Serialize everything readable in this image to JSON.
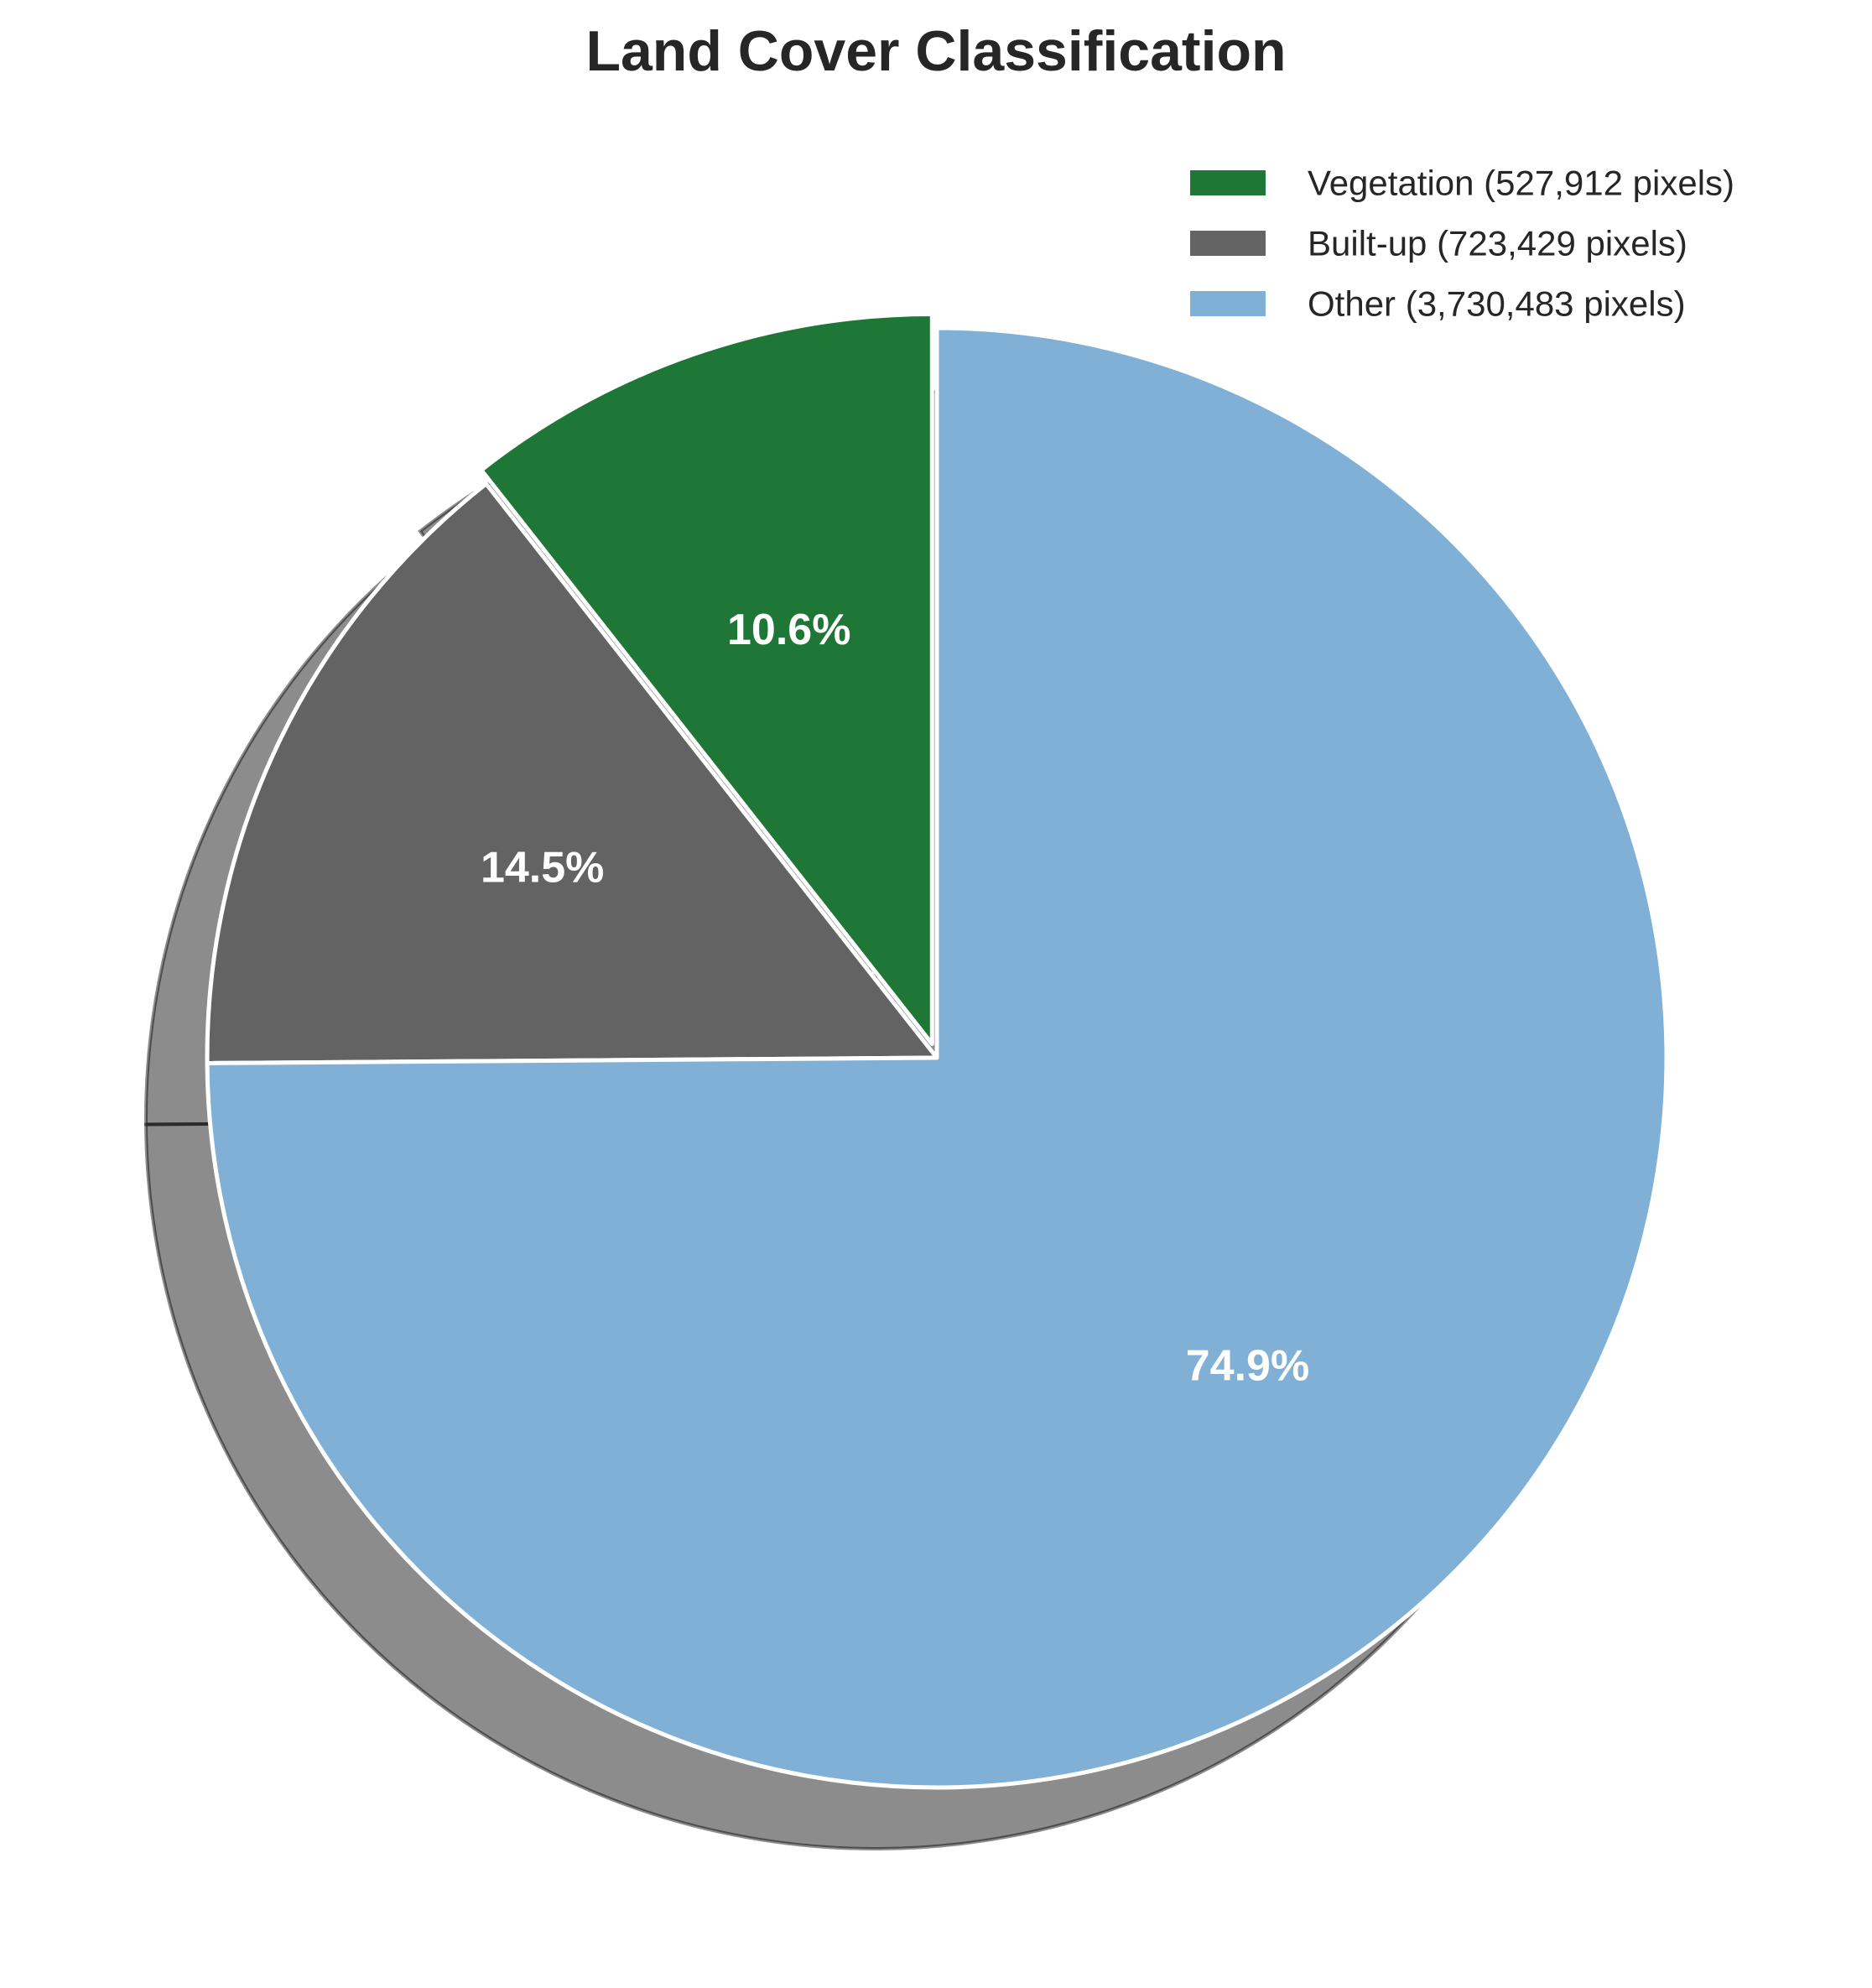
{
  "chart_data": {
    "type": "pie",
    "title": "Land Cover Classification",
    "slices": [
      {
        "label": "Vegetation (527,912 pixels)",
        "value": 527912,
        "percent_label": "10.6%",
        "color": "#1e7737"
      },
      {
        "label": "Built-up (723,429 pixels)",
        "value": 723429,
        "percent_label": "14.5%",
        "color": "#636363"
      },
      {
        "label": "Other (3,730,483 pixels)",
        "value": 3730483,
        "percent_label": "74.9%",
        "color": "#80b0d6"
      }
    ],
    "start_angle_deg": 90,
    "direction": "counterclockwise",
    "exploded_slice": "Vegetation (527,912 pixels)",
    "shadow": true,
    "edge_color": "#ffffff",
    "legend_position": "top-right"
  }
}
